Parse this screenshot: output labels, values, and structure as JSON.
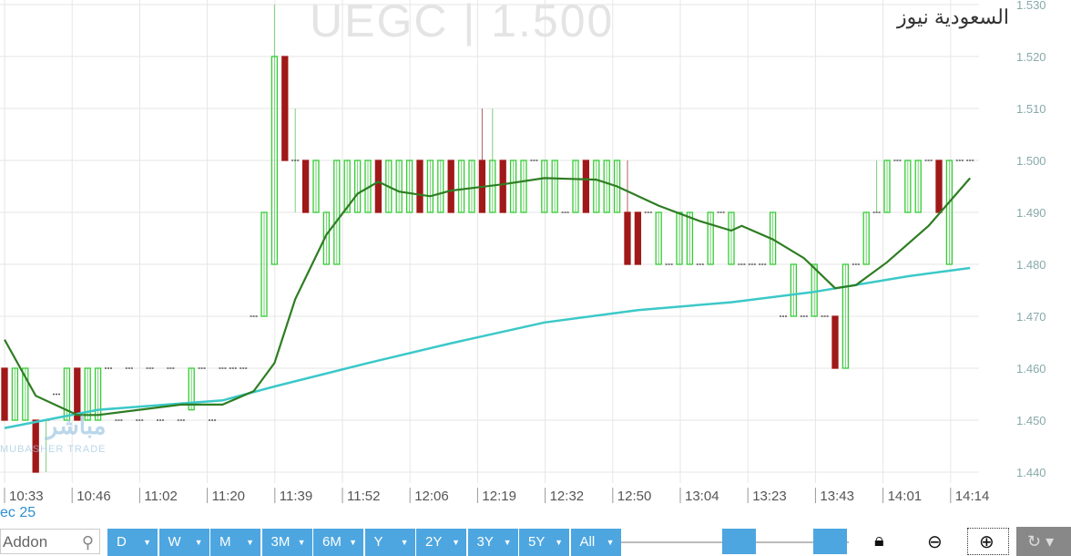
{
  "header": {
    "watermark": "UEGC  |  1.500",
    "site_name": "السعودية نيوز"
  },
  "logo": {
    "arabic": "مباشر",
    "english": "MUBASHER TRADE"
  },
  "date_label": "ec 25",
  "toolbar": {
    "search_placeholder": "Addon",
    "ranges": [
      "D",
      "W",
      "M",
      "3M",
      "6M",
      "Y",
      "2Y",
      "3Y",
      "5Y",
      "All"
    ],
    "icons": [
      "search-icon",
      "lock-icon",
      "zoom-out-icon",
      "zoom-in-icon",
      "refresh-icon"
    ]
  },
  "colors": {
    "up": "#33cc33",
    "down": "#a01818",
    "ma_short": "#2e7d22",
    "ma_long": "#3cc8c8",
    "accent": "#4da6e0"
  },
  "chart_data": {
    "type": "candlestick",
    "title": "",
    "ylim": [
      1.44,
      1.53
    ],
    "yticks": [
      "1.440",
      "1.450",
      "1.460",
      "1.470",
      "1.480",
      "1.490",
      "1.500",
      "1.510",
      "1.520",
      "1.530"
    ],
    "xticks": [
      "10:33",
      "10:46",
      "11:02",
      "11:20",
      "11:39",
      "11:52",
      "12:06",
      "12:19",
      "12:32",
      "12:50",
      "13:04",
      "13:23",
      "13:43",
      "14:01",
      "14:14"
    ],
    "grid": true,
    "candles_ohlc": [
      [
        1.46,
        1.46,
        1.45,
        1.45
      ],
      [
        1.45,
        1.46,
        1.45,
        1.46
      ],
      [
        1.45,
        1.46,
        1.45,
        1.46
      ],
      [
        1.45,
        1.45,
        1.44,
        1.44
      ],
      [
        1.45,
        1.45,
        1.44,
        1.45
      ],
      [
        1.455,
        1.455,
        1.455,
        1.455
      ],
      [
        1.45,
        1.46,
        1.45,
        1.46
      ],
      [
        1.46,
        1.46,
        1.45,
        1.45
      ],
      [
        1.45,
        1.46,
        1.45,
        1.46
      ],
      [
        1.45,
        1.46,
        1.45,
        1.46
      ],
      [
        1.46,
        1.46,
        1.46,
        1.46
      ],
      [
        1.45,
        1.45,
        1.45,
        1.45
      ],
      [
        1.46,
        1.46,
        1.46,
        1.46
      ],
      [
        1.45,
        1.45,
        1.45,
        1.45
      ],
      [
        1.46,
        1.46,
        1.46,
        1.46
      ],
      [
        1.45,
        1.45,
        1.45,
        1.45
      ],
      [
        1.46,
        1.46,
        1.46,
        1.46
      ],
      [
        1.45,
        1.45,
        1.45,
        1.45
      ],
      [
        1.452,
        1.46,
        1.452,
        1.46
      ],
      [
        1.46,
        1.46,
        1.46,
        1.46
      ],
      [
        1.45,
        1.45,
        1.45,
        1.45
      ],
      [
        1.46,
        1.46,
        1.46,
        1.46
      ],
      [
        1.46,
        1.46,
        1.46,
        1.46
      ],
      [
        1.46,
        1.46,
        1.46,
        1.46
      ],
      [
        1.47,
        1.47,
        1.47,
        1.47
      ],
      [
        1.47,
        1.49,
        1.47,
        1.49
      ],
      [
        1.48,
        1.53,
        1.48,
        1.52
      ],
      [
        1.52,
        1.52,
        1.5,
        1.5
      ],
      [
        1.5,
        1.51,
        1.49,
        1.5
      ],
      [
        1.5,
        1.5,
        1.49,
        1.49
      ],
      [
        1.49,
        1.5,
        1.49,
        1.5
      ],
      [
        1.48,
        1.49,
        1.48,
        1.49
      ],
      [
        1.48,
        1.5,
        1.48,
        1.5
      ],
      [
        1.49,
        1.5,
        1.49,
        1.5
      ],
      [
        1.49,
        1.5,
        1.49,
        1.5
      ],
      [
        1.49,
        1.5,
        1.49,
        1.5
      ],
      [
        1.5,
        1.5,
        1.49,
        1.49
      ],
      [
        1.49,
        1.5,
        1.49,
        1.5
      ],
      [
        1.49,
        1.5,
        1.49,
        1.5
      ],
      [
        1.49,
        1.5,
        1.49,
        1.5
      ],
      [
        1.5,
        1.5,
        1.49,
        1.49
      ],
      [
        1.49,
        1.5,
        1.49,
        1.5
      ],
      [
        1.49,
        1.5,
        1.49,
        1.5
      ],
      [
        1.5,
        1.5,
        1.49,
        1.49
      ],
      [
        1.49,
        1.5,
        1.49,
        1.5
      ],
      [
        1.49,
        1.5,
        1.49,
        1.5
      ],
      [
        1.5,
        1.51,
        1.49,
        1.49
      ],
      [
        1.49,
        1.51,
        1.49,
        1.5
      ],
      [
        1.5,
        1.5,
        1.49,
        1.49
      ],
      [
        1.49,
        1.5,
        1.49,
        1.5
      ],
      [
        1.49,
        1.5,
        1.49,
        1.5
      ],
      [
        1.5,
        1.5,
        1.5,
        1.5
      ],
      [
        1.49,
        1.5,
        1.49,
        1.5
      ],
      [
        1.49,
        1.5,
        1.49,
        1.5
      ],
      [
        1.49,
        1.49,
        1.49,
        1.49
      ],
      [
        1.49,
        1.5,
        1.49,
        1.5
      ],
      [
        1.5,
        1.5,
        1.49,
        1.49
      ],
      [
        1.49,
        1.5,
        1.49,
        1.5
      ],
      [
        1.49,
        1.5,
        1.49,
        1.5
      ],
      [
        1.49,
        1.5,
        1.49,
        1.5
      ],
      [
        1.49,
        1.5,
        1.48,
        1.48
      ],
      [
        1.49,
        1.49,
        1.48,
        1.48
      ],
      [
        1.49,
        1.49,
        1.49,
        1.49
      ],
      [
        1.48,
        1.49,
        1.48,
        1.49
      ],
      [
        1.48,
        1.48,
        1.48,
        1.48
      ],
      [
        1.48,
        1.49,
        1.48,
        1.49
      ],
      [
        1.48,
        1.49,
        1.48,
        1.49
      ],
      [
        1.48,
        1.48,
        1.48,
        1.48
      ],
      [
        1.48,
        1.49,
        1.48,
        1.49
      ],
      [
        1.49,
        1.49,
        1.49,
        1.49
      ],
      [
        1.48,
        1.49,
        1.48,
        1.49
      ],
      [
        1.48,
        1.48,
        1.48,
        1.48
      ],
      [
        1.48,
        1.48,
        1.48,
        1.48
      ],
      [
        1.48,
        1.48,
        1.48,
        1.48
      ],
      [
        1.48,
        1.49,
        1.48,
        1.49
      ],
      [
        1.47,
        1.47,
        1.47,
        1.47
      ],
      [
        1.47,
        1.48,
        1.47,
        1.48
      ],
      [
        1.47,
        1.47,
        1.47,
        1.47
      ],
      [
        1.47,
        1.48,
        1.47,
        1.48
      ],
      [
        1.47,
        1.47,
        1.47,
        1.47
      ],
      [
        1.47,
        1.47,
        1.46,
        1.46
      ],
      [
        1.46,
        1.48,
        1.46,
        1.48
      ],
      [
        1.48,
        1.48,
        1.48,
        1.48
      ],
      [
        1.48,
        1.49,
        1.48,
        1.49
      ],
      [
        1.49,
        1.5,
        1.49,
        1.49
      ],
      [
        1.49,
        1.5,
        1.49,
        1.5
      ],
      [
        1.5,
        1.5,
        1.5,
        1.5
      ],
      [
        1.49,
        1.5,
        1.49,
        1.5
      ],
      [
        1.49,
        1.5,
        1.49,
        1.5
      ],
      [
        1.5,
        1.5,
        1.5,
        1.5
      ],
      [
        1.5,
        1.5,
        1.49,
        1.49
      ],
      [
        1.48,
        1.5,
        1.48,
        1.5
      ],
      [
        1.5,
        1.5,
        1.5,
        1.5
      ],
      [
        1.5,
        1.5,
        1.5,
        1.5
      ]
    ],
    "ma_short": [
      [
        0,
        1.4655
      ],
      [
        3,
        1.4547
      ],
      [
        7,
        1.451
      ],
      [
        9,
        1.451
      ],
      [
        17,
        1.453
      ],
      [
        21,
        1.453
      ],
      [
        24,
        1.4556
      ],
      [
        26,
        1.461
      ],
      [
        28,
        1.4733
      ],
      [
        31,
        1.4857
      ],
      [
        34,
        1.4936
      ],
      [
        36,
        1.4959
      ],
      [
        38,
        1.494
      ],
      [
        41,
        1.4931
      ],
      [
        43,
        1.4942
      ],
      [
        48,
        1.4954
      ],
      [
        52,
        1.4966
      ],
      [
        57,
        1.4963
      ],
      [
        59,
        1.495
      ],
      [
        63,
        1.4913
      ],
      [
        67,
        1.4883
      ],
      [
        70,
        1.4865
      ],
      [
        71,
        1.4874
      ],
      [
        74,
        1.4848
      ],
      [
        77,
        1.4812
      ],
      [
        80,
        1.4754
      ],
      [
        82,
        1.476
      ],
      [
        85,
        1.4804
      ],
      [
        89,
        1.4874
      ],
      [
        93,
        1.4966
      ]
    ],
    "ma_long": [
      [
        0,
        1.4485
      ],
      [
        9,
        1.452
      ],
      [
        21,
        1.4538
      ],
      [
        26,
        1.4565
      ],
      [
        35,
        1.461
      ],
      [
        43,
        1.4648
      ],
      [
        52,
        1.4688
      ],
      [
        61,
        1.4712
      ],
      [
        70,
        1.4727
      ],
      [
        78,
        1.4747
      ],
      [
        87,
        1.4777
      ],
      [
        93,
        1.4793
      ]
    ]
  }
}
